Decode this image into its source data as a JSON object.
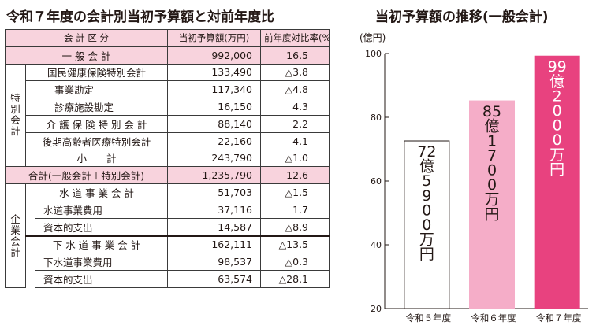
{
  "table": {
    "title": "令和７年度の会計別当初予算額と対前年度比",
    "headers": [
      "会 計 区 分",
      "当初予算額(万円)",
      "前年度対比率(%)"
    ],
    "groups": {
      "special": [
        "特",
        "別",
        "会",
        "計"
      ],
      "enterprise": [
        "企",
        "業",
        "会",
        "計"
      ]
    },
    "rows": [
      {
        "label": "一 般 会 計",
        "amount": "992,000",
        "rate": "16.5"
      },
      {
        "label": "国民健康保険特別会計",
        "amount": "133,490",
        "rate": "△3.8"
      },
      {
        "label": "事業勘定",
        "amount": "117,340",
        "rate": "△4.8"
      },
      {
        "label": "診療施設勘定",
        "amount": "16,150",
        "rate": "4.3"
      },
      {
        "label": "介 護 保 険 特 別 会 計",
        "amount": "88,140",
        "rate": "2.2"
      },
      {
        "label": "後期高齢者医療特別会計",
        "amount": "22,160",
        "rate": "4.1"
      },
      {
        "label": "小　　計",
        "amount": "243,790",
        "rate": "△1.0"
      },
      {
        "label": "合計(一般会計＋特別会計)",
        "amount": "1,235,790",
        "rate": "12.6"
      },
      {
        "label": "水 道 事 業 会 計",
        "amount": "51,703",
        "rate": "△1.5"
      },
      {
        "label": "水道事業費用",
        "amount": "37,116",
        "rate": "1.7"
      },
      {
        "label": "資本的支出",
        "amount": "14,587",
        "rate": "△8.9"
      },
      {
        "label": "下 水 道 事 業 会 計",
        "amount": "162,111",
        "rate": "△13.5"
      },
      {
        "label": "下水道事業費用",
        "amount": "98,537",
        "rate": "△0.3"
      },
      {
        "label": "資本的支出",
        "amount": "63,574",
        "rate": "△28.1"
      }
    ]
  },
  "chart_data": {
    "type": "bar",
    "title": "当初予算額の推移(一般会計)",
    "ylabel": "(億円)",
    "ylim": [
      20,
      100
    ],
    "yticks": [
      "20",
      "40",
      "60",
      "80",
      "100"
    ],
    "categories": [
      "令和５年度",
      "令和６年度",
      "令和７年度"
    ],
    "values": [
      72.59,
      85.17,
      99.2
    ],
    "bar_labels": [
      "72億5900万円",
      "85億1700万円",
      "99億2000万円"
    ],
    "colors": [
      "#ffffff",
      "#f5adc8",
      "#e8427f"
    ],
    "label_colors": [
      "#231815",
      "#231815",
      "#ffffff"
    ]
  }
}
